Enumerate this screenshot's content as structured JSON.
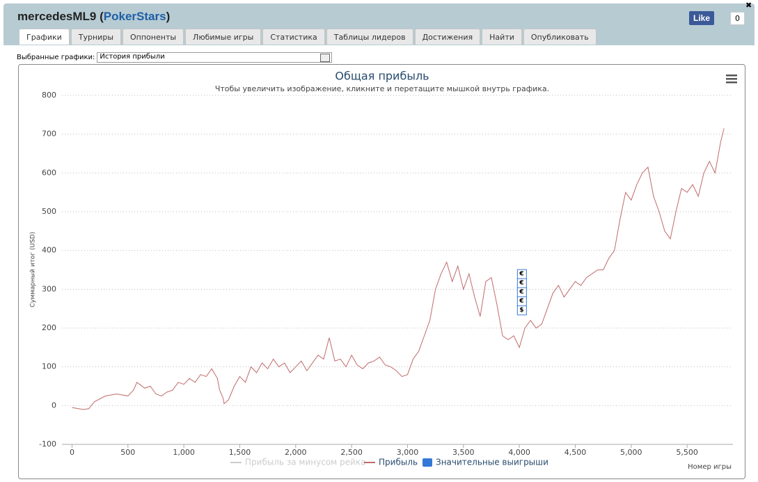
{
  "header": {
    "title_prefix": "mercedesML9 (",
    "site": "PokerStars",
    "title_suffix": ")",
    "like": "Like",
    "like_count": "0",
    "close": "✖"
  },
  "tabs": [
    "Графики",
    "Турниры",
    "Оппоненты",
    "Любимые игры",
    "Статистика",
    "Таблицы лидеров",
    "Достижения",
    "Найти",
    "Опубликовать"
  ],
  "selector": {
    "label": "Выбранные графики:",
    "value": "История прибыли"
  },
  "chart_data": {
    "type": "line",
    "title": "Общая прибыль",
    "subtitle": "Чтобы увеличить изображение, кликните и перетащите мышкой внутрь графика.",
    "y_label": "Суммарный итог (USD)",
    "x_label": "Номер игры",
    "x": [
      0,
      100,
      150,
      200,
      300,
      400,
      500,
      550,
      580,
      650,
      700,
      750,
      800,
      850,
      900,
      950,
      1000,
      1050,
      1100,
      1150,
      1200,
      1250,
      1300,
      1320,
      1350,
      1360,
      1400,
      1450,
      1500,
      1550,
      1600,
      1650,
      1700,
      1750,
      1800,
      1850,
      1900,
      1950,
      2000,
      2050,
      2100,
      2150,
      2200,
      2250,
      2300,
      2350,
      2400,
      2450,
      2500,
      2550,
      2600,
      2650,
      2700,
      2750,
      2800,
      2850,
      2900,
      2950,
      3000,
      3050,
      3100,
      3150,
      3200,
      3250,
      3300,
      3350,
      3400,
      3450,
      3500,
      3550,
      3600,
      3650,
      3700,
      3750,
      3800,
      3850,
      3900,
      3950,
      4000,
      4050,
      4100,
      4150,
      4200,
      4250,
      4300,
      4350,
      4400,
      4450,
      4500,
      4550,
      4600,
      4650,
      4700,
      4750,
      4800,
      4850,
      4900,
      4950,
      5000,
      5050,
      5100,
      5150,
      5200,
      5250,
      5300,
      5350,
      5400,
      5450,
      5500,
      5550,
      5600,
      5650,
      5700,
      5750,
      5800,
      5830
    ],
    "series": [
      {
        "name": "Прибыль",
        "color": "#c06a6a",
        "values": [
          -5,
          -10,
          -8,
          10,
          25,
          30,
          25,
          40,
          60,
          45,
          50,
          30,
          25,
          35,
          40,
          60,
          55,
          70,
          60,
          80,
          75,
          95,
          70,
          40,
          20,
          5,
          15,
          50,
          75,
          60,
          100,
          85,
          110,
          95,
          120,
          100,
          110,
          85,
          100,
          115,
          90,
          110,
          130,
          120,
          175,
          115,
          120,
          100,
          130,
          105,
          95,
          110,
          115,
          125,
          105,
          100,
          90,
          75,
          80,
          120,
          140,
          180,
          220,
          300,
          340,
          370,
          320,
          360,
          300,
          340,
          280,
          230,
          320,
          330,
          260,
          180,
          170,
          180,
          150,
          200,
          220,
          200,
          210,
          250,
          290,
          310,
          280,
          300,
          320,
          310,
          330,
          340,
          350,
          350,
          380,
          400,
          480,
          550,
          530,
          570,
          600,
          615,
          540,
          500,
          450,
          430,
          500,
          560,
          550,
          570,
          540,
          600,
          630,
          600,
          680,
          715
        ]
      }
    ],
    "legend_extra": [
      {
        "name": "Прибыль за минусом рейка",
        "color": "#cccccc"
      },
      {
        "name": "Значительные выигрыши",
        "color": "#3579d8"
      }
    ],
    "flags": {
      "x": 4020,
      "labels": [
        "€",
        "€",
        "€",
        "€",
        "$"
      ]
    },
    "xlim": [
      -90,
      5910
    ],
    "ylim": [
      -100,
      800
    ],
    "xticks": [
      0,
      500,
      {
        "value": 1000,
        "label": "1,000"
      },
      {
        "value": 1500,
        "label": "1,500"
      },
      {
        "value": 2000,
        "label": "2,000"
      },
      {
        "value": 2500,
        "label": "2,500"
      },
      {
        "value": 3000,
        "label": "3,000"
      },
      {
        "value": 3500,
        "label": "3,500"
      },
      {
        "value": 4000,
        "label": "4,000"
      },
      {
        "value": 4500,
        "label": "4,500"
      },
      {
        "value": 5000,
        "label": "5,000"
      },
      {
        "value": 5500,
        "label": "5,500"
      }
    ],
    "yticks": [
      -100,
      0,
      100,
      200,
      300,
      400,
      500,
      600,
      700,
      800
    ],
    "grid": true
  }
}
